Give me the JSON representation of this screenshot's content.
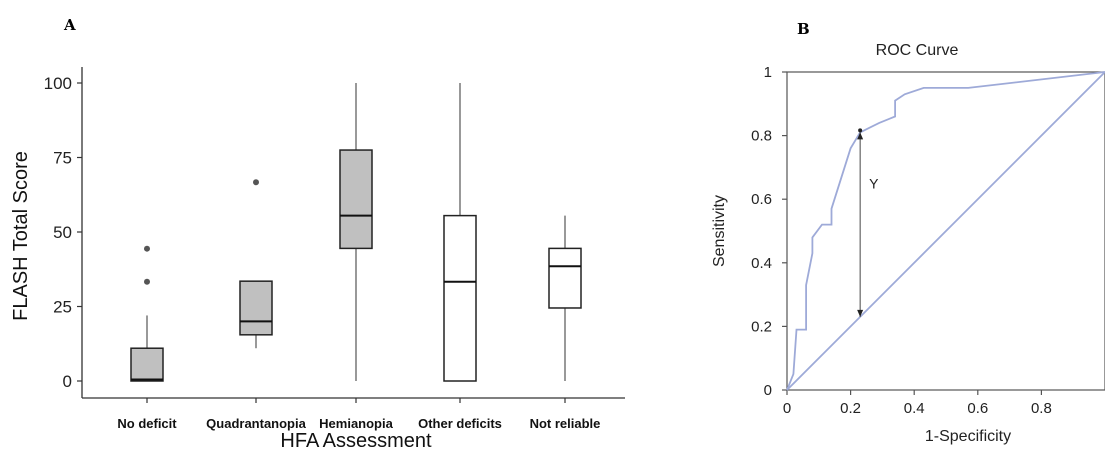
{
  "chart_data": [
    {
      "panel": "A",
      "type": "box",
      "xlabel": "HFA Assessment",
      "ylabel": "FLASH Total Score",
      "ylim": [
        0,
        100
      ],
      "yticks": [
        "0",
        "25",
        "50",
        "75",
        "100"
      ],
      "categories": [
        "No deficit",
        "Quadrantanopia",
        "Hemianopia",
        "Other deficits",
        "Not reliable"
      ],
      "boxes": [
        {
          "category": "No deficit",
          "min": 0,
          "q1": 0,
          "median": 0.5,
          "q3": 11,
          "max": 22,
          "outliers": [
            33.3,
            44.4
          ],
          "fill": "#c0c0c0"
        },
        {
          "category": "Quadrantanopia",
          "min": 11,
          "q1": 15.5,
          "median": 20,
          "q3": 33.5,
          "max": 33.5,
          "outliers": [
            66.7
          ],
          "fill": "#c0c0c0"
        },
        {
          "category": "Hemianopia",
          "min": 0,
          "q1": 44.5,
          "median": 55.5,
          "q3": 77.5,
          "max": 100,
          "outliers": [],
          "fill": "#c0c0c0"
        },
        {
          "category": "Other deficits",
          "min": 0,
          "q1": 0,
          "median": 33.3,
          "q3": 55.5,
          "max": 100,
          "outliers": [],
          "fill": "#ffffff"
        },
        {
          "category": "Not reliable",
          "min": 0,
          "q1": 24.5,
          "median": 38.5,
          "q3": 44.5,
          "max": 55.5,
          "outliers": [],
          "fill": "#ffffff"
        }
      ]
    },
    {
      "panel": "B",
      "type": "line",
      "title": "ROC Curve",
      "xlabel": "1-Specificity",
      "ylabel": "Sensitivity",
      "xlim": [
        0,
        1
      ],
      "ylim": [
        0,
        1
      ],
      "xticks": [
        "0",
        "0.2",
        "0.4",
        "0.6",
        "0.8"
      ],
      "yticks": [
        "0",
        "0.2",
        "0.4",
        "0.6",
        "0.8",
        "1"
      ],
      "line_color": "#9eaad8",
      "series": [
        {
          "points": [
            [
              0,
              0
            ],
            [
              0.02,
              0.05
            ],
            [
              0.03,
              0.19
            ],
            [
              0.06,
              0.19
            ],
            [
              0.06,
              0.33
            ],
            [
              0.08,
              0.43
            ],
            [
              0.08,
              0.48
            ],
            [
              0.11,
              0.52
            ],
            [
              0.14,
              0.52
            ],
            [
              0.14,
              0.57
            ],
            [
              0.2,
              0.76
            ],
            [
              0.23,
              0.81
            ],
            [
              0.29,
              0.84
            ],
            [
              0.34,
              0.86
            ],
            [
              0.34,
              0.91
            ],
            [
              0.37,
              0.93
            ],
            [
              0.43,
              0.95
            ],
            [
              0.57,
              0.95
            ],
            [
              1,
              1
            ]
          ]
        },
        {
          "points": [
            [
              0,
              0
            ],
            [
              1,
              1
            ]
          ]
        }
      ],
      "annotation": {
        "label": "Y",
        "x": 0.23,
        "y_top": 0.81,
        "y_bottom": 0.23
      }
    }
  ],
  "panels": {
    "a_letter": "A",
    "b_letter": "B"
  }
}
